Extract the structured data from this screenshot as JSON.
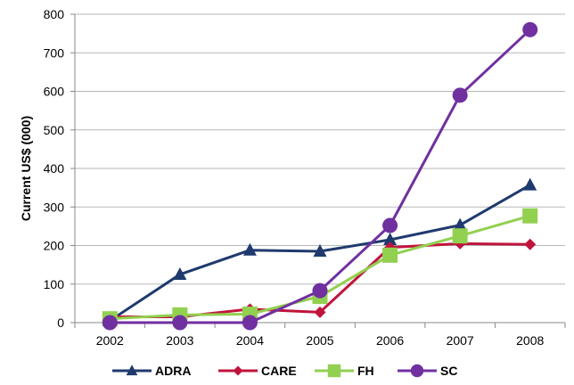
{
  "chart_data": {
    "type": "line",
    "title": "",
    "xlabel": "",
    "ylabel": "Current US$ (000)",
    "x": [
      "2002",
      "2003",
      "2004",
      "2005",
      "2006",
      "2007",
      "2008"
    ],
    "ylim": [
      0,
      800
    ],
    "yticks": [
      0,
      100,
      200,
      300,
      400,
      500,
      600,
      700,
      800
    ],
    "grid": "horizontal",
    "legend_position": "bottom",
    "series": [
      {
        "name": "ADRA",
        "color": "#1F3A6E",
        "marker": "triangle",
        "values": [
          5,
          125,
          188,
          185,
          215,
          253,
          357
        ]
      },
      {
        "name": "CARE",
        "color": "#C0143C",
        "marker": "diamond",
        "values": [
          15,
          15,
          35,
          27,
          195,
          205,
          203
        ]
      },
      {
        "name": "FH",
        "color": "#92D050",
        "marker": "square",
        "values": [
          10,
          20,
          22,
          68,
          175,
          225,
          277
        ]
      },
      {
        "name": "SC",
        "color": "#7030A0",
        "marker": "circle",
        "values": [
          0,
          0,
          0,
          83,
          252,
          590,
          760
        ]
      }
    ]
  }
}
